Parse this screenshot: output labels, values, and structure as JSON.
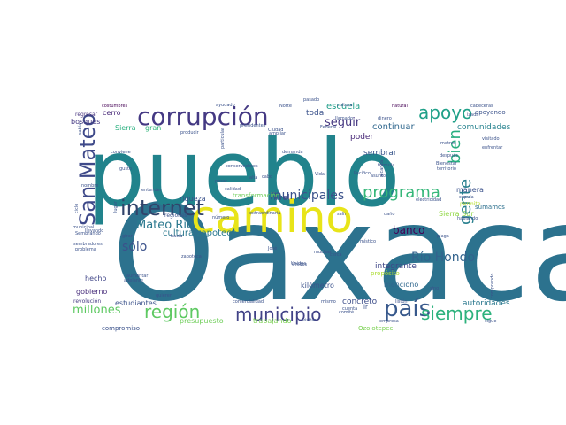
{
  "words": [
    {
      "text": "Oaxaca",
      "color": "#2c728e"
    },
    {
      "text": "pueblo",
      "color": "#21838c"
    },
    {
      "text": "camino",
      "color": "#e8e419"
    },
    {
      "text": "corrupción",
      "color": "#443983"
    },
    {
      "text": "internet",
      "color": "#31446b"
    },
    {
      "text": "San Mateo",
      "color": "#3e4989"
    },
    {
      "text": "municipio",
      "color": "#414287"
    },
    {
      "text": "país",
      "color": "#38598c"
    },
    {
      "text": "región",
      "color": "#5ec962"
    },
    {
      "text": "apoyo",
      "color": "#1fa088"
    },
    {
      "text": "programa",
      "color": "#35b779"
    },
    {
      "text": "siempre",
      "color": "#2db27d"
    },
    {
      "text": "gente",
      "color": "#277f8e"
    },
    {
      "text": "bien",
      "color": "#28ae80"
    },
    {
      "text": "municipales",
      "color": "#3b528b"
    },
    {
      "text": "Mateo Río",
      "color": "#2a788e"
    },
    {
      "text": "Río Hondo",
      "color": "#33638d"
    },
    {
      "text": "millones",
      "color": "#5ec962"
    },
    {
      "text": "sólo",
      "color": "#3b528b"
    },
    {
      "text": "seguir",
      "color": "#453781"
    },
    {
      "text": "banco",
      "color": "#440154"
    },
    {
      "text": "cultura zapoteca",
      "color": "#2a788e"
    },
    {
      "text": "continuar",
      "color": "#31688e"
    },
    {
      "text": "comunidades",
      "color": "#26828e"
    },
    {
      "text": "escuela",
      "color": "#1f9e89"
    },
    {
      "text": "toda",
      "color": "#3b528b"
    },
    {
      "text": "poder",
      "color": "#482878"
    },
    {
      "text": "sembrar",
      "color": "#39568c"
    },
    {
      "text": "nivel",
      "color": "#3e4a89"
    },
    {
      "text": "integrante",
      "color": "#3f4788"
    },
    {
      "text": "concreto",
      "color": "#3d4e8a"
    },
    {
      "text": "autoridades",
      "color": "#2a788e"
    },
    {
      "text": "presupuesto",
      "color": "#6ece58"
    },
    {
      "text": "trabajando",
      "color": "#7ad151"
    },
    {
      "text": "estudiantes",
      "color": "#3b528b"
    },
    {
      "text": "hecho",
      "color": "#404688"
    },
    {
      "text": "gobierno",
      "color": "#472d7b"
    },
    {
      "text": "bosques",
      "color": "#443983"
    },
    {
      "text": "cerro",
      "color": "#482878"
    },
    {
      "text": "Sierra",
      "color": "#2ab07f"
    },
    {
      "text": "gran",
      "color": "#31b57b"
    },
    {
      "text": "manera",
      "color": "#3b528b"
    },
    {
      "text": "sumamos",
      "color": "#2d708e"
    },
    {
      "text": "Sierra Sur",
      "color": "#90d743"
    },
    {
      "text": "kilómetro",
      "color": "#3b528b"
    },
    {
      "text": "mencionó",
      "color": "#31688e"
    },
    {
      "text": "propósito",
      "color": "#addc30"
    },
    {
      "text": "riqueza",
      "color": "#3b528b"
    },
    {
      "text": "transformación",
      "color": "#6ece58"
    },
    {
      "text": "Ozolotepec",
      "color": "#7ad151"
    },
    {
      "text": "compromiso",
      "color": "#3b528b"
    },
    {
      "text": "revolución",
      "color": "#443983"
    },
    {
      "text": "regresar",
      "color": "#46327e"
    },
    {
      "text": "costumbres",
      "color": "#440154"
    },
    {
      "text": "apoyando",
      "color": "#3b528b"
    },
    {
      "text": "cabeceras",
      "color": "#3b528b"
    },
    {
      "text": "natural",
      "color": "#440154"
    },
    {
      "text": "visitado",
      "color": "#3b528b"
    },
    {
      "text": "Bienestar",
      "color": "#3b528b"
    },
    {
      "text": "territorio",
      "color": "#3b528b"
    },
    {
      "text": "permite",
      "color": "#b5de2b"
    },
    {
      "text": "plaga",
      "color": "#3b528b"
    },
    {
      "text": "ampliar",
      "color": "#3b528b"
    },
    {
      "text": "presidentes",
      "color": "#3b528b"
    },
    {
      "text": "conservadores",
      "color": "#3b528b"
    },
    {
      "text": "extraordinaria",
      "color": "#3b528b"
    },
    {
      "text": "fórmula",
      "color": "#3b528b"
    },
    {
      "text": "Pacífico",
      "color": "#3b528b"
    },
    {
      "text": "demanda",
      "color": "#3b528b"
    },
    {
      "text": "calidad",
      "color": "#3b528b"
    },
    {
      "text": "pesar",
      "color": "#3b528b"
    },
    {
      "text": "entender",
      "color": "#3b528b"
    },
    {
      "text": "producir",
      "color": "#3b528b"
    },
    {
      "text": "particular",
      "color": "#3b528b"
    },
    {
      "text": "conviene",
      "color": "#3b528b"
    },
    {
      "text": "gusto",
      "color": "#3b528b"
    },
    {
      "text": "Ciudad",
      "color": "#3b528b"
    },
    {
      "text": "Norte",
      "color": "#3b528b"
    },
    {
      "text": "Vida",
      "color": "#3b528b"
    },
    {
      "text": "asunto",
      "color": "#3b528b"
    },
    {
      "text": "dinero",
      "color": "#3b528b"
    },
    {
      "text": "metros",
      "color": "#3b528b"
    },
    {
      "text": "enfrentar",
      "color": "#3b528b"
    },
    {
      "text": "después",
      "color": "#3b528b"
    },
    {
      "text": "cúpula",
      "color": "#3b528b"
    },
    {
      "text": "hablando",
      "color": "#3b528b"
    },
    {
      "text": "electricidad",
      "color": "#3b528b"
    },
    {
      "text": "daño",
      "color": "#3b528b"
    },
    {
      "text": "salir",
      "color": "#3b528b"
    },
    {
      "text": "número",
      "color": "#3b528b"
    },
    {
      "text": "regiones",
      "color": "#3b528b"
    },
    {
      "text": "José",
      "color": "#3b528b"
    },
    {
      "text": "Unidos",
      "color": "#3b528b"
    },
    {
      "text": "muchas",
      "color": "#3b528b"
    },
    {
      "text": "cerca",
      "color": "#3b528b"
    },
    {
      "text": "místico",
      "color": "#3b528b"
    },
    {
      "text": "listón",
      "color": "#3b528b"
    },
    {
      "text": "sino",
      "color": "#3b528b"
    },
    {
      "text": "comité",
      "color": "#3b528b"
    },
    {
      "text": "visitar",
      "color": "#3b528b"
    },
    {
      "text": "empresa",
      "color": "#3b528b"
    },
    {
      "text": "sigue",
      "color": "#3b528b"
    },
    {
      "text": "comprando",
      "color": "#3b528b"
    },
    {
      "text": "quieren",
      "color": "#3b528b"
    },
    {
      "text": "adelante",
      "color": "#3b528b"
    },
    {
      "text": "aumentar",
      "color": "#3b528b"
    },
    {
      "text": "zapoteca",
      "color": "#3b528b"
    },
    {
      "text": "hacia",
      "color": "#3b528b"
    },
    {
      "text": "alta",
      "color": "#3b528b"
    },
    {
      "text": "cabo",
      "color": "#3b528b"
    },
    {
      "text": "llevando",
      "color": "#3b528b"
    },
    {
      "text": "municipal",
      "color": "#3b528b"
    },
    {
      "text": "Sembrando",
      "color": "#3b528b"
    },
    {
      "text": "sembradores",
      "color": "#3b528b"
    },
    {
      "text": "problema",
      "color": "#3b528b"
    },
    {
      "text": "ciclo",
      "color": "#3b528b"
    },
    {
      "text": "girar",
      "color": "#3b528b"
    },
    {
      "text": "lugar",
      "color": "#3b528b"
    },
    {
      "text": "nombre",
      "color": "#3b528b"
    },
    {
      "text": "mismo",
      "color": "#3b528b"
    },
    {
      "text": "ir",
      "color": "#3b528b"
    },
    {
      "text": "Unidos",
      "color": "#3b528b"
    },
    {
      "text": "comercialidad",
      "color": "#3b528b"
    },
    {
      "text": "sabía",
      "color": "#3b528b"
    },
    {
      "text": "Federal",
      "color": "#3b528b"
    },
    {
      "text": "cultura",
      "color": "#3b528b"
    },
    {
      "text": "alcanza",
      "color": "#3b528b"
    },
    {
      "text": "cuenta",
      "color": "#3b528b"
    },
    {
      "text": "ayudado",
      "color": "#3b528b"
    },
    {
      "text": "pasado",
      "color": "#3b528b"
    },
    {
      "text": "izada",
      "color": "#3b528b"
    },
    {
      "text": "llamado",
      "color": "#3b528b"
    }
  ]
}
